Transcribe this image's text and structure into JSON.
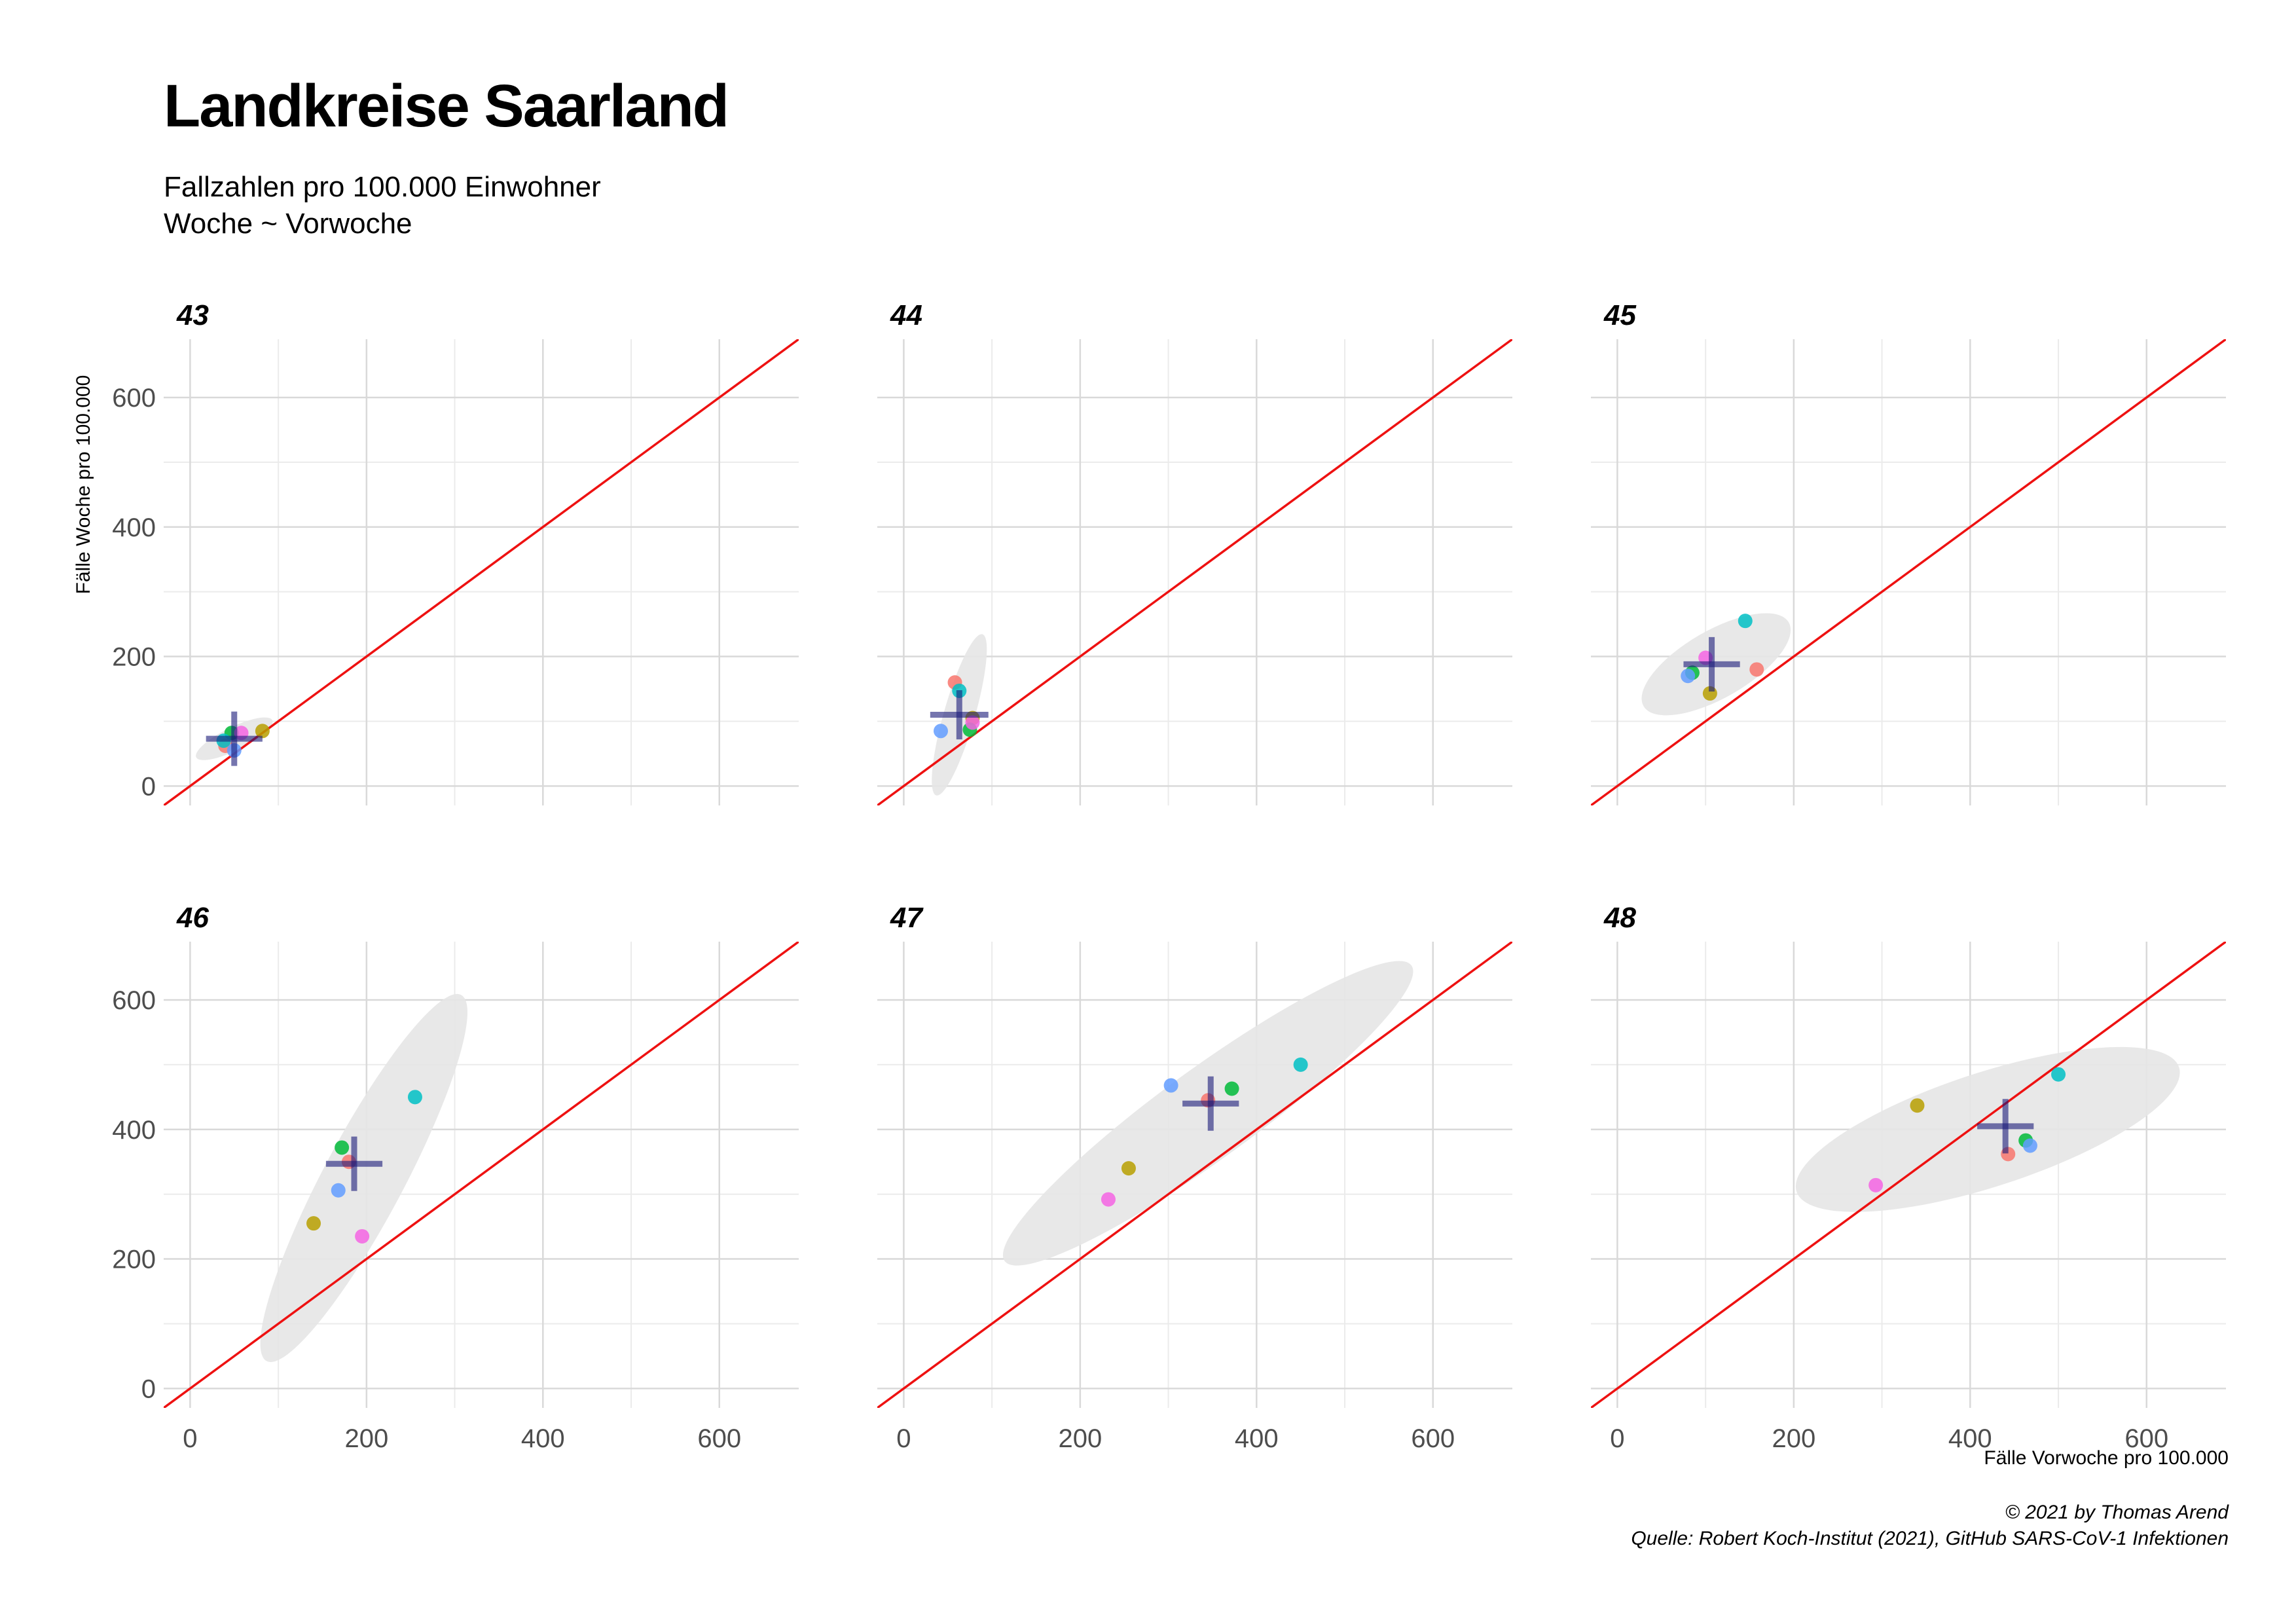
{
  "title": "Landkreise Saarland",
  "subtitle_line1": "Fallzahlen pro 100.000 Einwohner",
  "subtitle_line2": "Woche ~ Vorwoche",
  "caption_line1": "© 2021 by Thomas Arend",
  "caption_line2": "Quelle: Robert Koch-Institut (2021), GitHub SARS-CoV-1 Infektionen",
  "chart_data": {
    "type": "scatter",
    "xlabel": "Fälle Vorwoche pro 100.000",
    "ylabel": "Fälle Woche pro 100.000",
    "xlim": [
      -30,
      690
    ],
    "ylim": [
      -30,
      690
    ],
    "x_ticks": [
      0,
      200,
      400,
      600
    ],
    "y_ticks": [
      0,
      200,
      400,
      600
    ],
    "grid": true,
    "reference_line": "y = x",
    "colors": {
      "red": "#F8766D",
      "olive": "#B79F00",
      "green": "#00BA38",
      "teal": "#00BFC4",
      "blue": "#619CFF",
      "magenta": "#F564E3",
      "center": "#1a1a7a",
      "ellipse": "#e6e6e6",
      "diagonal": "#ee1111"
    },
    "panels": [
      {
        "week": "43",
        "points": [
          {
            "color": "red",
            "x": 40,
            "y": 62
          },
          {
            "color": "olive",
            "x": 82,
            "y": 85
          },
          {
            "color": "green",
            "x": 47,
            "y": 82
          },
          {
            "color": "teal",
            "x": 38,
            "y": 70
          },
          {
            "color": "blue",
            "x": 50,
            "y": 55
          },
          {
            "color": "magenta",
            "x": 58,
            "y": 82
          }
        ],
        "center": {
          "x": 50,
          "y": 73,
          "hx": 32,
          "hy": 42
        },
        "ellipse": {
          "cx": 50,
          "cy": 73,
          "rx": 48,
          "ry": 18,
          "angle": 26
        }
      },
      {
        "week": "44",
        "points": [
          {
            "color": "red",
            "x": 58,
            "y": 160
          },
          {
            "color": "olive",
            "x": 78,
            "y": 105
          },
          {
            "color": "green",
            "x": 75,
            "y": 87
          },
          {
            "color": "teal",
            "x": 63,
            "y": 147
          },
          {
            "color": "blue",
            "x": 42,
            "y": 85
          },
          {
            "color": "magenta",
            "x": 78,
            "y": 98
          }
        ],
        "center": {
          "x": 63,
          "y": 110,
          "hx": 33,
          "hy": 38
        },
        "ellipse": {
          "cx": 63,
          "cy": 110,
          "rx": 95,
          "ry": 24,
          "angle": 74
        }
      },
      {
        "week": "45",
        "points": [
          {
            "color": "red",
            "x": 158,
            "y": 180
          },
          {
            "color": "olive",
            "x": 105,
            "y": 143
          },
          {
            "color": "green",
            "x": 85,
            "y": 175
          },
          {
            "color": "teal",
            "x": 145,
            "y": 255
          },
          {
            "color": "blue",
            "x": 80,
            "y": 170
          },
          {
            "color": "magenta",
            "x": 100,
            "y": 198
          }
        ],
        "center": {
          "x": 107,
          "y": 188,
          "hx": 32,
          "hy": 42
        },
        "ellipse": {
          "cx": 112,
          "cy": 188,
          "rx": 95,
          "ry": 52,
          "angle": 30
        }
      },
      {
        "week": "46",
        "points": [
          {
            "color": "red",
            "x": 180,
            "y": 350
          },
          {
            "color": "olive",
            "x": 140,
            "y": 255
          },
          {
            "color": "green",
            "x": 172,
            "y": 372
          },
          {
            "color": "teal",
            "x": 255,
            "y": 450
          },
          {
            "color": "blue",
            "x": 168,
            "y": 306
          },
          {
            "color": "magenta",
            "x": 195,
            "y": 235
          }
        ],
        "center": {
          "x": 186,
          "y": 347,
          "hx": 32,
          "hy": 42
        },
        "ellipse": {
          "cx": 197,
          "cy": 325,
          "rx": 235,
          "ry": 62,
          "angle": 62
        }
      },
      {
        "week": "47",
        "points": [
          {
            "color": "red",
            "x": 345,
            "y": 445
          },
          {
            "color": "olive",
            "x": 255,
            "y": 340
          },
          {
            "color": "green",
            "x": 372,
            "y": 463
          },
          {
            "color": "teal",
            "x": 450,
            "y": 500
          },
          {
            "color": "blue",
            "x": 303,
            "y": 468
          },
          {
            "color": "magenta",
            "x": 232,
            "y": 292
          }
        ],
        "center": {
          "x": 348,
          "y": 440,
          "hx": 32,
          "hy": 42
        },
        "ellipse": {
          "cx": 345,
          "cy": 425,
          "rx": 285,
          "ry": 70,
          "angle": 36
        }
      },
      {
        "week": "48",
        "points": [
          {
            "color": "red",
            "x": 443,
            "y": 362
          },
          {
            "color": "olive",
            "x": 340,
            "y": 437
          },
          {
            "color": "green",
            "x": 463,
            "y": 383
          },
          {
            "color": "teal",
            "x": 500,
            "y": 485
          },
          {
            "color": "blue",
            "x": 468,
            "y": 375
          },
          {
            "color": "magenta",
            "x": 293,
            "y": 314
          }
        ],
        "center": {
          "x": 440,
          "y": 405,
          "hx": 32,
          "hy": 42
        },
        "ellipse": {
          "cx": 420,
          "cy": 400,
          "rx": 228,
          "ry": 88,
          "angle": 18
        }
      }
    ]
  }
}
